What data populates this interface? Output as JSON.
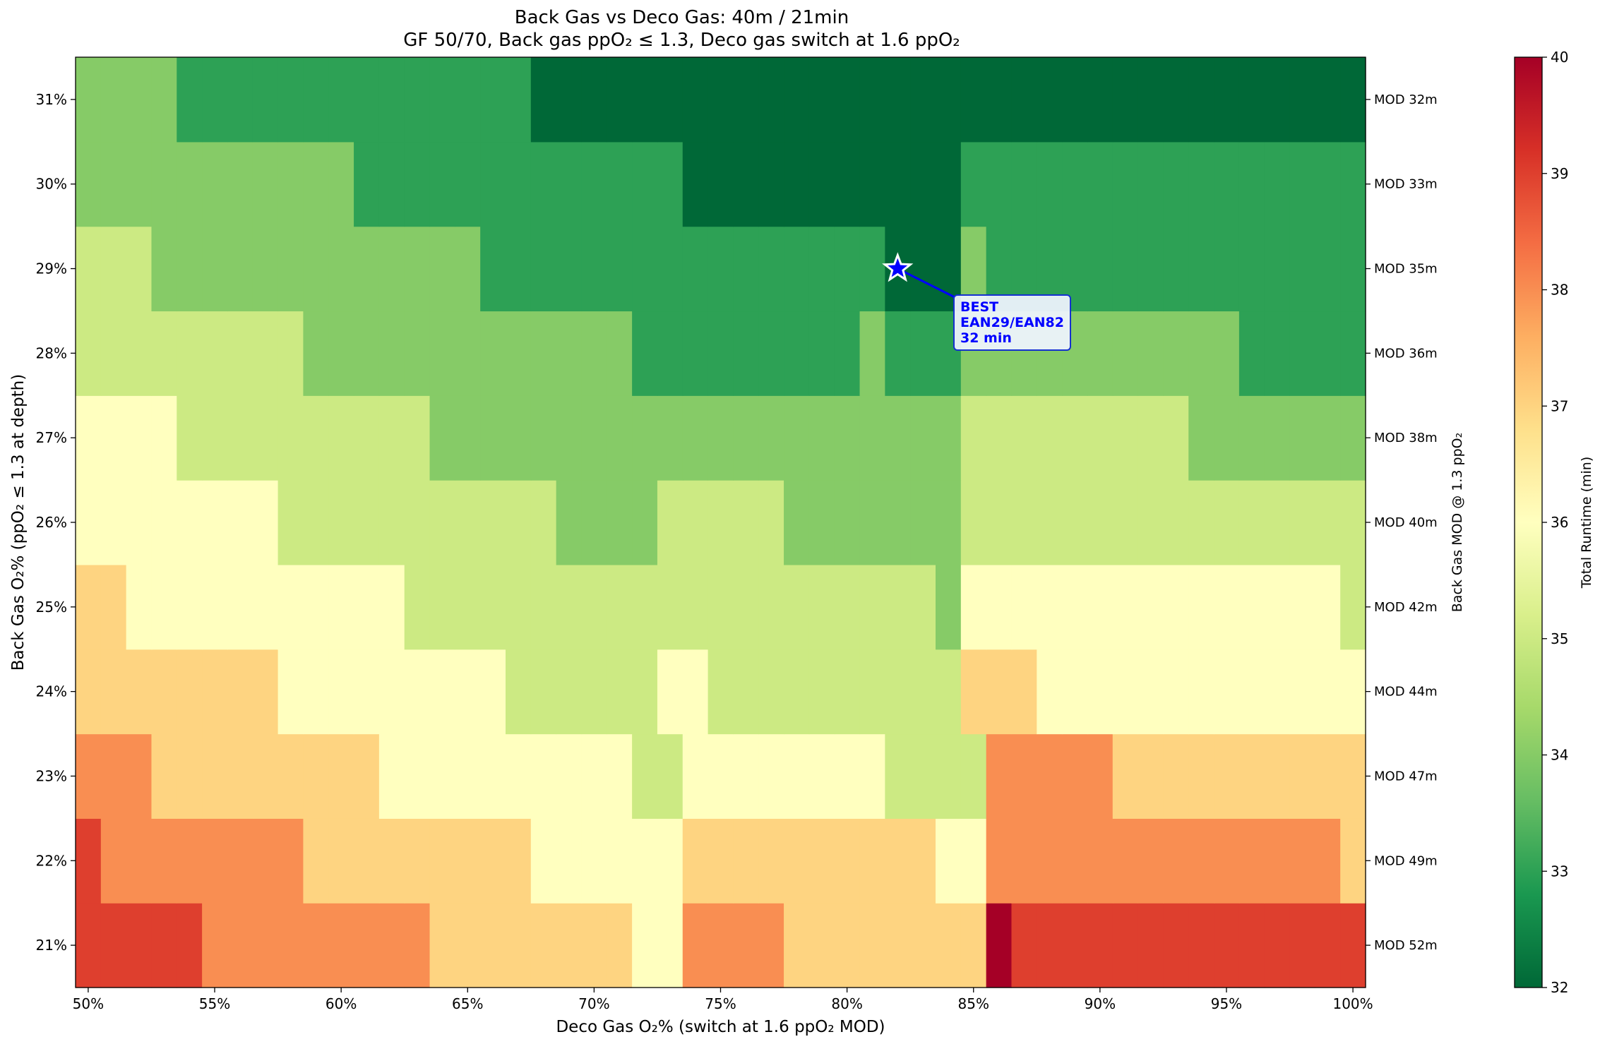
{
  "chart_data": {
    "type": "heatmap",
    "title": "Back Gas vs Deco Gas: 40m / 21min",
    "subtitle": "GF 50/70, Back gas ppO₂ ≤ 1.3, Deco gas switch at 1.6 ppO₂",
    "xlabel": "Deco Gas O₂% (switch at 1.6 ppO₂ MOD)",
    "ylabel": "Back Gas O₂% (ppO₂ ≤ 1.3 at depth)",
    "right_ylabel": "Back Gas MOD @ 1.3 ppO₂",
    "colorbar_label": "Total Runtime (min)",
    "colormap": "RdYlGn_r",
    "color_range": [
      32,
      40
    ],
    "colorbar_ticks": [
      "32",
      "33",
      "34",
      "35",
      "36",
      "37",
      "38",
      "39",
      "40"
    ],
    "x_values": [
      50,
      51,
      52,
      53,
      54,
      55,
      56,
      57,
      58,
      59,
      60,
      61,
      62,
      63,
      64,
      65,
      66,
      67,
      68,
      69,
      70,
      71,
      72,
      73,
      74,
      75,
      76,
      77,
      78,
      79,
      80,
      81,
      82,
      83,
      84,
      85,
      86,
      87,
      88,
      89,
      90,
      91,
      92,
      93,
      94,
      95,
      96,
      97,
      98,
      99,
      100
    ],
    "x_tick_labels": [
      "50%",
      "55%",
      "60%",
      "65%",
      "70%",
      "75%",
      "80%",
      "85%",
      "90%",
      "95%",
      "100%"
    ],
    "y_values": [
      21,
      22,
      23,
      24,
      25,
      26,
      27,
      28,
      29,
      30,
      31
    ],
    "y_tick_labels": [
      "21%",
      "22%",
      "23%",
      "24%",
      "25%",
      "26%",
      "27%",
      "28%",
      "29%",
      "30%",
      "31%"
    ],
    "right_tick_labels": [
      "MOD 52m",
      "MOD 49m",
      "MOD 47m",
      "MOD 44m",
      "MOD 42m",
      "MOD 40m",
      "MOD 38m",
      "MOD 36m",
      "MOD 35m",
      "MOD 33m",
      "MOD 32m"
    ],
    "runtime_rows": {
      "31": [
        34,
        34,
        34,
        34,
        33,
        33,
        33,
        33,
        33,
        33,
        33,
        33,
        33,
        33,
        33,
        33,
        33,
        33,
        32,
        32,
        32,
        32,
        32,
        32,
        32,
        32,
        32,
        32,
        32,
        32,
        32,
        32,
        32,
        32,
        32,
        32,
        32,
        32,
        32,
        32,
        32,
        32,
        32,
        32,
        32,
        32,
        32,
        32,
        32,
        32,
        32
      ],
      "30": [
        34,
        34,
        34,
        34,
        34,
        34,
        34,
        34,
        34,
        34,
        34,
        33,
        33,
        33,
        33,
        33,
        33,
        33,
        33,
        33,
        33,
        33,
        33,
        33,
        32,
        32,
        32,
        32,
        32,
        32,
        32,
        32,
        32,
        32,
        32,
        33,
        33,
        33,
        33,
        33,
        33,
        33,
        33,
        33,
        33,
        33,
        33,
        33,
        33,
        33,
        33
      ],
      "29": [
        35,
        35,
        35,
        34,
        34,
        34,
        34,
        34,
        34,
        34,
        34,
        34,
        34,
        34,
        34,
        34,
        33,
        33,
        33,
        33,
        33,
        33,
        33,
        33,
        33,
        33,
        33,
        33,
        33,
        33,
        33,
        33,
        32,
        32,
        32,
        34,
        33,
        33,
        33,
        33,
        33,
        33,
        33,
        33,
        33,
        33,
        33,
        33,
        33,
        33,
        33
      ],
      "28": [
        35,
        35,
        35,
        35,
        35,
        35,
        35,
        35,
        35,
        34,
        34,
        34,
        34,
        34,
        34,
        34,
        34,
        34,
        34,
        34,
        34,
        34,
        33,
        33,
        33,
        33,
        33,
        33,
        33,
        33,
        33,
        34,
        33,
        33,
        33,
        34,
        34,
        34,
        34,
        34,
        34,
        34,
        34,
        34,
        34,
        34,
        33,
        33,
        33,
        33,
        33
      ],
      "27": [
        36,
        36,
        36,
        36,
        35,
        35,
        35,
        35,
        35,
        35,
        35,
        35,
        35,
        35,
        34,
        34,
        34,
        34,
        34,
        34,
        34,
        34,
        34,
        34,
        34,
        34,
        34,
        34,
        34,
        34,
        34,
        34,
        34,
        34,
        34,
        35,
        35,
        35,
        35,
        35,
        35,
        35,
        35,
        35,
        34,
        34,
        34,
        34,
        34,
        34,
        34
      ],
      "26": [
        36,
        36,
        36,
        36,
        36,
        36,
        36,
        36,
        35,
        35,
        35,
        35,
        35,
        35,
        35,
        35,
        35,
        35,
        35,
        34,
        34,
        34,
        34,
        35,
        35,
        35,
        35,
        35,
        34,
        34,
        34,
        34,
        34,
        34,
        34,
        35,
        35,
        35,
        35,
        35,
        35,
        35,
        35,
        35,
        35,
        35,
        35,
        35,
        35,
        35,
        35
      ],
      "25": [
        37,
        37,
        36,
        36,
        36,
        36,
        36,
        36,
        36,
        36,
        36,
        36,
        36,
        35,
        35,
        35,
        35,
        35,
        35,
        35,
        35,
        35,
        35,
        35,
        35,
        35,
        35,
        35,
        35,
        35,
        35,
        35,
        35,
        35,
        34,
        36,
        36,
        36,
        36,
        36,
        36,
        36,
        36,
        36,
        36,
        36,
        36,
        36,
        36,
        36,
        35
      ],
      "24": [
        37,
        37,
        37,
        37,
        37,
        37,
        37,
        37,
        36,
        36,
        36,
        36,
        36,
        36,
        36,
        36,
        36,
        35,
        35,
        35,
        35,
        35,
        35,
        36,
        36,
        35,
        35,
        35,
        35,
        35,
        35,
        35,
        35,
        35,
        35,
        37,
        37,
        37,
        36,
        36,
        36,
        36,
        36,
        36,
        36,
        36,
        36,
        36,
        36,
        36,
        36
      ],
      "23": [
        38,
        38,
        38,
        37,
        37,
        37,
        37,
        37,
        37,
        37,
        37,
        37,
        36,
        36,
        36,
        36,
        36,
        36,
        36,
        36,
        36,
        36,
        35,
        35,
        36,
        36,
        36,
        36,
        36,
        36,
        36,
        36,
        35,
        35,
        35,
        35,
        38,
        38,
        38,
        38,
        38,
        37,
        37,
        37,
        37,
        37,
        37,
        37,
        37,
        37,
        37
      ],
      "22": [
        39,
        38,
        38,
        38,
        38,
        38,
        38,
        38,
        38,
        37,
        37,
        37,
        37,
        37,
        37,
        37,
        37,
        37,
        36,
        36,
        36,
        36,
        36,
        36,
        37,
        37,
        37,
        37,
        37,
        37,
        37,
        37,
        37,
        37,
        36,
        36,
        38,
        38,
        38,
        38,
        38,
        38,
        38,
        38,
        38,
        38,
        38,
        38,
        38,
        38,
        37
      ],
      "21": [
        39,
        39,
        39,
        39,
        39,
        38,
        38,
        38,
        38,
        38,
        38,
        38,
        38,
        38,
        37,
        37,
        37,
        37,
        37,
        37,
        37,
        37,
        36,
        36,
        38,
        38,
        38,
        38,
        37,
        37,
        37,
        37,
        37,
        37,
        37,
        37,
        40,
        39,
        39,
        39,
        39,
        39,
        39,
        39,
        39,
        39,
        39,
        39,
        39,
        39,
        39
      ]
    },
    "best": {
      "deco_o2": 82,
      "back_o2": 29,
      "runtime": 32,
      "label": "BEST\nEAN29/EAN82\n32 min"
    }
  }
}
